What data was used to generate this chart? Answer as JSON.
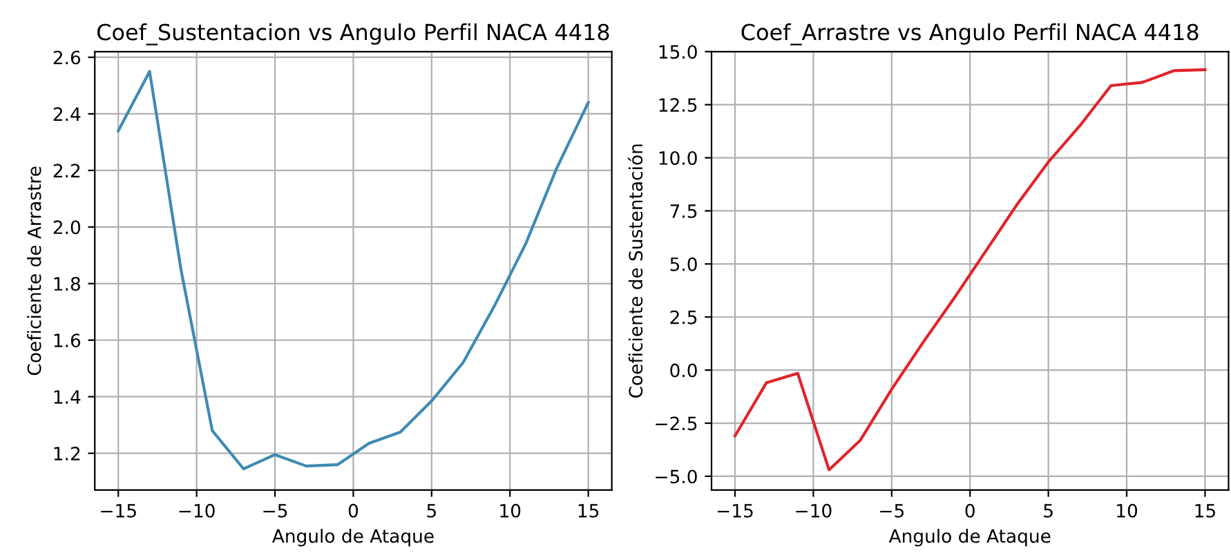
{
  "chart_data": [
    {
      "type": "line",
      "title": "Coef_Sustentacion vs Angulo Perfil NACA 4418",
      "xlabel": "Angulo de Ataque",
      "ylabel": "Coeficiente de Arrastre",
      "x": [
        -15,
        -13,
        -11,
        -9,
        -7,
        -5,
        -3,
        -1,
        1,
        3,
        5,
        7,
        9,
        11,
        13,
        15
      ],
      "series": [
        {
          "color": "#3f8ab3",
          "values": [
            2.34,
            2.55,
            1.85,
            1.28,
            1.145,
            1.195,
            1.155,
            1.16,
            1.235,
            1.275,
            1.385,
            1.52,
            1.72,
            1.94,
            2.21,
            2.44
          ]
        }
      ],
      "xlim": [
        -16.5,
        16.5
      ],
      "xticks": [
        {
          "value": -15,
          "label": "−15"
        },
        {
          "value": -10,
          "label": "−10"
        },
        {
          "value": -5,
          "label": "−5"
        },
        0,
        5,
        10,
        15
      ],
      "ylim": [
        1.07,
        2.62
      ],
      "yticks": [
        1.2,
        1.4,
        1.6,
        1.8,
        {
          "value": 2,
          "label": "2.0"
        },
        2.2,
        2.4,
        2.6
      ],
      "grid": true
    },
    {
      "type": "line",
      "title": "Coef_Arrastre vs Angulo Perfil NACA 4418",
      "xlabel": "Angulo de Ataque",
      "ylabel": "Coeficiente de Sustentación",
      "x": [
        -15,
        -13,
        -11,
        -9,
        -7,
        -5,
        -3,
        -1,
        1,
        3,
        5,
        7,
        9,
        11,
        13,
        15
      ],
      "series": [
        {
          "color": "#e0242b",
          "values": [
            -3.1,
            -0.6,
            -0.15,
            -4.7,
            -3.3,
            -0.9,
            1.3,
            3.4,
            5.6,
            7.8,
            9.8,
            11.5,
            13.4,
            13.55,
            14.1,
            14.15
          ]
        }
      ],
      "xlim": [
        -16.5,
        16.5
      ],
      "xticks": [
        {
          "value": -15,
          "label": "−15"
        },
        {
          "value": -10,
          "label": "−10"
        },
        {
          "value": -5,
          "label": "−5"
        },
        0,
        5,
        10,
        15
      ],
      "ylim": [
        -5.65,
        15.0
      ],
      "yticks": [
        {
          "value": -5,
          "label": "−5.0"
        },
        {
          "value": -2.5,
          "label": "−2.5"
        },
        {
          "value": 0,
          "label": "0.0"
        },
        {
          "value": 2.5,
          "label": "2.5"
        },
        {
          "value": 5,
          "label": "5.0"
        },
        {
          "value": 7.5,
          "label": "7.5"
        },
        {
          "value": 10,
          "label": "10.0"
        },
        {
          "value": 12.5,
          "label": "12.5"
        },
        {
          "value": 15,
          "label": "15.0"
        }
      ],
      "grid": true
    }
  ]
}
